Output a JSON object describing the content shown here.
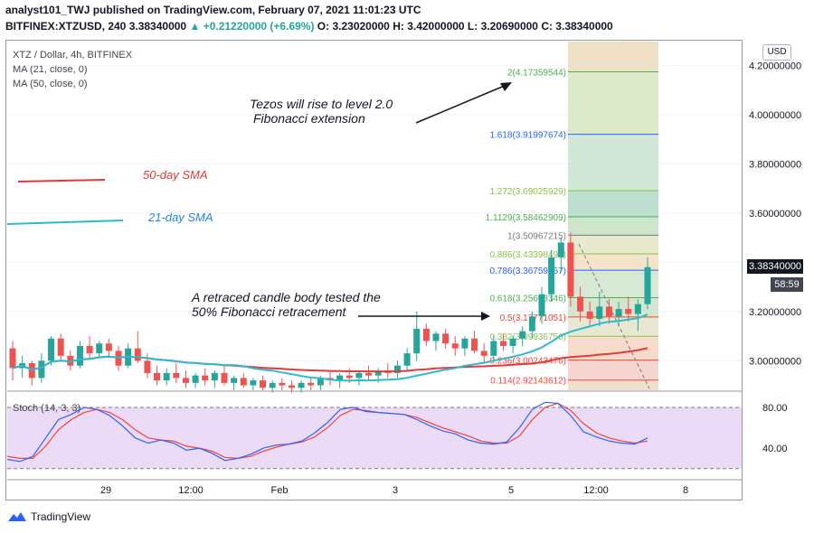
{
  "header": {
    "line1": "analyst101_TWJ published on TradingView.com, February 07, 2021 11:01:23 UTC",
    "symbol": "BITFINEX:XTZUSD, 240",
    "last": "3.38340000",
    "change": "+0.21220000 (+6.69%)",
    "ohlc": "O: 3.23020000 H: 3.42000000 L: 3.20690000 C: 3.38340000"
  },
  "legend": {
    "title": "XTZ / Dollar, 4h, BITFINEX",
    "ma21": "MA (21, close, 0)",
    "ma50": "MA (50, close, 0)"
  },
  "annotations": {
    "sma50": "50-day SMA",
    "sma21": "21-day SMA",
    "rise_line1": "Tezos will rise to level 2.0",
    "rise_line2": "Fibonacci extension",
    "retrace_line1": "A retraced candle body tested the",
    "retrace_line2": "50% Fibonacci retracement"
  },
  "price_axis": {
    "currency": "USD",
    "current_price": "3.38340000",
    "countdown": "58:59",
    "ticks": [
      "4.20000000",
      "4.00000000",
      "3.80000000",
      "3.60000000",
      "3.20000000",
      "3.00000000"
    ]
  },
  "stoch_axis": {
    "label": "Stoch (14, 3, 3)",
    "ticks": [
      "80.00",
      "40.00"
    ]
  },
  "time_axis": {
    "ticks": [
      "29",
      "12:00",
      "Feb",
      "3",
      "5",
      "12:00",
      "8"
    ]
  },
  "brand": "TradingView",
  "colors": {
    "up": "#26a69a",
    "down": "#ef5350",
    "ma21": "#2bbbd1",
    "ma50": "#e53935",
    "stoch_k": "#2962ff",
    "stoch_d": "#f44336",
    "stoch_bg": "#e8d5f5"
  },
  "chart_data": {
    "type": "candlestick",
    "ylim": [
      2.88,
      4.3
    ],
    "fib_levels": [
      {
        "label": "2(4.17359544)",
        "value": 4.17359544,
        "color": "#4caf50"
      },
      {
        "label": "1.618(3.91997674)",
        "value": 3.91997674,
        "color": "#2962ff"
      },
      {
        "label": "1.272(3.69025929)",
        "value": 3.69025929,
        "color": "#8bc34a"
      },
      {
        "label": "1.1129(3.58462909)",
        "value": 3.58462909,
        "color": "#4caf50"
      },
      {
        "label": "1(3.50967215)",
        "value": 3.50967215,
        "color": "#787b86"
      },
      {
        "label": "0.886(3.43398490)",
        "value": 3.4339849,
        "color": "#8bc34a"
      },
      {
        "label": "0.786(3.36759357)",
        "value": 3.36759357,
        "color": "#2962ff"
      },
      {
        "label": "0.618(3.25603346)",
        "value": 3.25603346,
        "color": "#4caf50"
      },
      {
        "label": "0.5(3.17771051)",
        "value": 3.17771051,
        "color": "#f44336"
      },
      {
        "label": "0.382(3.09936756)",
        "value": 3.09936756,
        "color": "#8bc34a"
      },
      {
        "label": "0.236(3.00243476)",
        "value": 3.00243476,
        "color": "#f44336"
      },
      {
        "label": "0.114(2.92143612)",
        "value": 2.92143612,
        "color": "#f44336"
      }
    ],
    "candles": [
      [
        3.05,
        3.08,
        2.92,
        2.97
      ],
      [
        2.97,
        3.02,
        2.93,
        2.99
      ],
      [
        2.99,
        3.0,
        2.9,
        2.93
      ],
      [
        2.93,
        3.03,
        2.91,
        3.0
      ],
      [
        3.0,
        3.1,
        2.98,
        3.09
      ],
      [
        3.09,
        3.11,
        3.0,
        3.02
      ],
      [
        3.02,
        3.04,
        2.96,
        2.98
      ],
      [
        2.98,
        3.08,
        2.97,
        3.06
      ],
      [
        3.06,
        3.1,
        3.01,
        3.03
      ],
      [
        3.03,
        3.08,
        3.01,
        3.07
      ],
      [
        3.07,
        3.09,
        3.02,
        3.04
      ],
      [
        3.04,
        3.06,
        2.96,
        2.98
      ],
      [
        2.98,
        3.07,
        2.97,
        3.05
      ],
      [
        3.05,
        3.12,
        2.99,
        3.0
      ],
      [
        3.0,
        3.03,
        2.93,
        2.95
      ],
      [
        2.95,
        2.98,
        2.9,
        2.92
      ],
      [
        2.92,
        2.97,
        2.9,
        2.95
      ],
      [
        2.95,
        2.99,
        2.91,
        2.93
      ],
      [
        2.93,
        2.96,
        2.89,
        2.91
      ],
      [
        2.91,
        2.95,
        2.89,
        2.94
      ],
      [
        2.94,
        2.97,
        2.9,
        2.92
      ],
      [
        2.92,
        2.96,
        2.89,
        2.95
      ],
      [
        2.95,
        2.98,
        2.9,
        2.91
      ],
      [
        2.91,
        2.94,
        2.88,
        2.93
      ],
      [
        2.93,
        2.95,
        2.89,
        2.9
      ],
      [
        2.9,
        2.93,
        2.88,
        2.92
      ],
      [
        2.92,
        2.94,
        2.88,
        2.89
      ],
      [
        2.89,
        2.92,
        2.87,
        2.91
      ],
      [
        2.91,
        2.93,
        2.88,
        2.9
      ],
      [
        2.9,
        2.92,
        2.87,
        2.89
      ],
      [
        2.89,
        2.92,
        2.87,
        2.91
      ],
      [
        2.91,
        2.93,
        2.88,
        2.9
      ],
      [
        2.9,
        2.94,
        2.88,
        2.93
      ],
      [
        2.93,
        2.96,
        2.9,
        2.92
      ],
      [
        2.92,
        2.95,
        2.89,
        2.94
      ],
      [
        2.94,
        2.97,
        2.91,
        2.93
      ],
      [
        2.93,
        2.96,
        2.9,
        2.95
      ],
      [
        2.95,
        2.98,
        2.92,
        2.94
      ],
      [
        2.94,
        2.97,
        2.91,
        2.96
      ],
      [
        2.96,
        2.99,
        2.93,
        2.95
      ],
      [
        2.95,
        3.0,
        2.93,
        2.98
      ],
      [
        2.98,
        3.05,
        2.96,
        3.03
      ],
      [
        3.03,
        3.2,
        3.0,
        3.13
      ],
      [
        3.13,
        3.15,
        3.06,
        3.08
      ],
      [
        3.08,
        3.12,
        3.04,
        3.11
      ],
      [
        3.11,
        3.13,
        3.05,
        3.07
      ],
      [
        3.07,
        3.1,
        3.02,
        3.05
      ],
      [
        3.05,
        3.1,
        3.02,
        3.09
      ],
      [
        3.09,
        3.12,
        3.03,
        3.04
      ],
      [
        3.04,
        3.07,
        2.99,
        3.02
      ],
      [
        3.02,
        3.1,
        3.0,
        3.08
      ],
      [
        3.08,
        3.11,
        3.04,
        3.06
      ],
      [
        3.06,
        3.1,
        3.03,
        3.09
      ],
      [
        3.09,
        3.14,
        3.06,
        3.12
      ],
      [
        3.12,
        3.2,
        3.09,
        3.18
      ],
      [
        3.18,
        3.3,
        3.15,
        3.27
      ],
      [
        3.27,
        3.45,
        3.24,
        3.42
      ],
      [
        3.42,
        3.5,
        3.36,
        3.48
      ],
      [
        3.48,
        3.52,
        3.22,
        3.26
      ],
      [
        3.26,
        3.3,
        3.16,
        3.2
      ],
      [
        3.2,
        3.24,
        3.14,
        3.17
      ],
      [
        3.17,
        3.28,
        3.14,
        3.22
      ],
      [
        3.22,
        3.25,
        3.15,
        3.18
      ],
      [
        3.18,
        3.24,
        3.14,
        3.21
      ],
      [
        3.21,
        3.26,
        3.16,
        3.19
      ],
      [
        3.19,
        3.25,
        3.12,
        3.23
      ],
      [
        3.23,
        3.42,
        3.21,
        3.38
      ]
    ],
    "stoch_k": [
      29,
      27,
      32,
      50,
      68,
      73,
      80,
      78,
      72,
      62,
      50,
      45,
      48,
      45,
      38,
      40,
      35,
      28,
      30,
      34,
      40,
      43,
      44,
      47,
      55,
      65,
      78,
      80,
      76,
      75,
      74,
      73,
      68,
      62,
      57,
      54,
      48,
      45,
      44,
      46,
      60,
      78,
      85,
      84,
      72,
      56,
      51,
      47,
      45,
      44,
      50
    ],
    "stoch_d": [
      32,
      30,
      30,
      42,
      58,
      68,
      75,
      78,
      75,
      68,
      58,
      50,
      48,
      47,
      42,
      40,
      37,
      31,
      30,
      32,
      37,
      41,
      44,
      46,
      51,
      60,
      72,
      78,
      77,
      75,
      74,
      73,
      70,
      65,
      60,
      56,
      52,
      47,
      45,
      45,
      52,
      68,
      80,
      84,
      77,
      64,
      55,
      50,
      47,
      45,
      47
    ]
  }
}
